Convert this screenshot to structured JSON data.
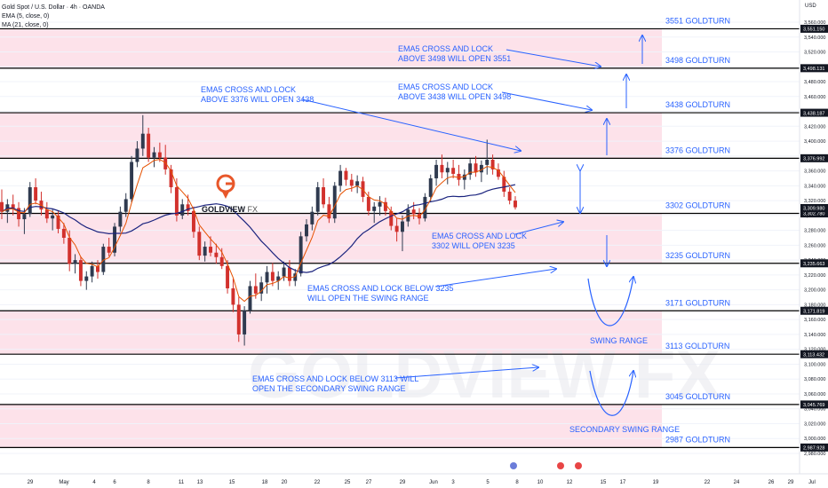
{
  "header": {
    "title": "Gold Spot / U.S. Dollar · 4h · OANDA",
    "ema_label": "EMA (5, close, 0)",
    "ma_label": "MA (21, close, 0)"
  },
  "currency_label": "USD",
  "watermark_center": "GOLDVIEW FX",
  "colors": {
    "zone_fill": "#fde2ea",
    "level_line": "#000000",
    "annotation": "#2962ff",
    "up_candle": "#2f3a4f",
    "down_candle": "#d2312d",
    "ema": "#e65100",
    "ma": "#1a237e",
    "logo": "#e8572a",
    "price_tag": "#131722"
  },
  "chart_data": {
    "type": "candlestick",
    "title": "Gold Spot / U.S. Dollar · 4h · OANDA",
    "indicators": [
      "EMA (5, close, 0)",
      "MA (21, close, 0)"
    ],
    "y_axis": {
      "unit": "USD",
      "range": [
        2975,
        3575
      ],
      "ticks": [
        3560,
        3540,
        3520,
        3500,
        3480,
        3460,
        3440,
        3420,
        3400,
        3380,
        3360,
        3340,
        3320,
        3300,
        3280,
        3260,
        3240,
        3220,
        3200,
        3180,
        3160,
        3140,
        3120,
        3100,
        3080,
        3060,
        3040,
        3020,
        3000,
        2980
      ]
    },
    "x_axis_ticks": [
      "29",
      "May",
      "4",
      "6",
      "8",
      "11",
      "13",
      "15",
      "18",
      "20",
      "22",
      "25",
      "27",
      "29",
      "Jun",
      "3",
      "5",
      "8",
      "10",
      "12",
      "15",
      "17",
      "19",
      "22",
      "24",
      "26",
      "29",
      "Jul"
    ],
    "levels": [
      {
        "price": 3551.15,
        "label": "3551 GOLDTURN",
        "tag": "3,551.150"
      },
      {
        "price": 3498.131,
        "label": "3498 GOLDTURN",
        "tag": "3,498.131"
      },
      {
        "price": 3438.187,
        "label": "3438 GOLDTURN",
        "tag": "3,438.187"
      },
      {
        "price": 3376.992,
        "label": "3376 GOLDTURN",
        "tag": "3,376.992"
      },
      {
        "price": 3302.78,
        "label": "3302 GOLDTURN",
        "tag": "3,302.780"
      },
      {
        "price": 3235.663,
        "label": "3235 GOLDTURN",
        "tag": "3,235.663"
      },
      {
        "price": 3171.819,
        "label": "3171 GOLDTURN",
        "tag": "3,171.819"
      },
      {
        "price": 3113.432,
        "label": "3113 GOLDTURN",
        "tag": "3,113.432"
      },
      {
        "price": 3045.769,
        "label": "3045 GOLDTURN",
        "tag": "3,045.769"
      },
      {
        "price": 2987.928,
        "label": "2987 GOLDTURN",
        "tag": "2,987.928"
      }
    ],
    "current_price": {
      "price": 3309.98,
      "tag": "3,309.980"
    },
    "zones": [
      [
        3498.131,
        3551.15
      ],
      [
        3376.992,
        3438.187
      ],
      [
        3235.663,
        3302.78
      ],
      [
        3113.432,
        3171.819
      ],
      [
        2987.928,
        3045.769
      ]
    ],
    "candles_ohlc": [
      [
        3318,
        3335,
        3295,
        3305
      ],
      [
        3305,
        3322,
        3290,
        3315
      ],
      [
        3315,
        3328,
        3300,
        3310
      ],
      [
        3310,
        3318,
        3285,
        3295
      ],
      [
        3295,
        3310,
        3275,
        3302
      ],
      [
        3302,
        3345,
        3298,
        3338
      ],
      [
        3338,
        3350,
        3315,
        3320
      ],
      [
        3320,
        3332,
        3300,
        3308
      ],
      [
        3308,
        3318,
        3290,
        3296
      ],
      [
        3296,
        3308,
        3280,
        3300
      ],
      [
        3300,
        3306,
        3276,
        3282
      ],
      [
        3282,
        3290,
        3262,
        3270
      ],
      [
        3270,
        3280,
        3225,
        3235
      ],
      [
        3235,
        3248,
        3222,
        3240
      ],
      [
        3240,
        3245,
        3205,
        3212
      ],
      [
        3212,
        3225,
        3200,
        3218
      ],
      [
        3218,
        3238,
        3210,
        3232
      ],
      [
        3232,
        3240,
        3215,
        3224
      ],
      [
        3224,
        3262,
        3220,
        3258
      ],
      [
        3258,
        3270,
        3245,
        3250
      ],
      [
        3250,
        3290,
        3245,
        3285
      ],
      [
        3285,
        3312,
        3278,
        3305
      ],
      [
        3305,
        3330,
        3298,
        3322
      ],
      [
        3322,
        3380,
        3318,
        3372
      ],
      [
        3372,
        3400,
        3365,
        3390
      ],
      [
        3390,
        3435,
        3380,
        3410
      ],
      [
        3410,
        3418,
        3372,
        3378
      ],
      [
        3378,
        3392,
        3365,
        3385
      ],
      [
        3385,
        3398,
        3372,
        3378
      ],
      [
        3378,
        3395,
        3355,
        3362
      ],
      [
        3362,
        3368,
        3330,
        3338
      ],
      [
        3338,
        3350,
        3292,
        3300
      ],
      [
        3300,
        3322,
        3295,
        3315
      ],
      [
        3315,
        3328,
        3300,
        3306
      ],
      [
        3306,
        3312,
        3270,
        3278
      ],
      [
        3278,
        3285,
        3240,
        3246
      ],
      [
        3246,
        3265,
        3238,
        3258
      ],
      [
        3258,
        3272,
        3245,
        3250
      ],
      [
        3250,
        3262,
        3235,
        3244
      ],
      [
        3244,
        3256,
        3228,
        3232
      ],
      [
        3232,
        3240,
        3195,
        3202
      ],
      [
        3202,
        3215,
        3170,
        3180
      ],
      [
        3180,
        3190,
        3130,
        3140
      ],
      [
        3140,
        3178,
        3125,
        3172
      ],
      [
        3172,
        3212,
        3168,
        3205
      ],
      [
        3205,
        3222,
        3188,
        3195
      ],
      [
        3195,
        3218,
        3185,
        3210
      ],
      [
        3210,
        3232,
        3195,
        3224
      ],
      [
        3224,
        3236,
        3205,
        3212
      ],
      [
        3212,
        3225,
        3200,
        3218
      ],
      [
        3218,
        3238,
        3212,
        3230
      ],
      [
        3230,
        3240,
        3205,
        3212
      ],
      [
        3212,
        3228,
        3205,
        3222
      ],
      [
        3222,
        3278,
        3218,
        3272
      ],
      [
        3272,
        3295,
        3265,
        3288
      ],
      [
        3288,
        3312,
        3280,
        3305
      ],
      [
        3305,
        3345,
        3300,
        3338
      ],
      [
        3338,
        3350,
        3310,
        3315
      ],
      [
        3315,
        3325,
        3290,
        3296
      ],
      [
        3296,
        3345,
        3290,
        3340
      ],
      [
        3340,
        3368,
        3332,
        3360
      ],
      [
        3360,
        3364,
        3340,
        3348
      ],
      [
        3348,
        3356,
        3332,
        3340
      ],
      [
        3340,
        3354,
        3330,
        3346
      ],
      [
        3346,
        3352,
        3318,
        3325
      ],
      [
        3325,
        3332,
        3300,
        3306
      ],
      [
        3306,
        3318,
        3290,
        3312
      ],
      [
        3312,
        3326,
        3300,
        3318
      ],
      [
        3318,
        3324,
        3300,
        3306
      ],
      [
        3306,
        3312,
        3280,
        3286
      ],
      [
        3286,
        3296,
        3265,
        3278
      ],
      [
        3278,
        3300,
        3252,
        3292
      ],
      [
        3292,
        3315,
        3285,
        3308
      ],
      [
        3308,
        3318,
        3295,
        3302
      ],
      [
        3302,
        3310,
        3288,
        3296
      ],
      [
        3296,
        3330,
        3292,
        3325
      ],
      [
        3325,
        3355,
        3318,
        3350
      ],
      [
        3350,
        3375,
        3340,
        3368
      ],
      [
        3368,
        3382,
        3350,
        3358
      ],
      [
        3358,
        3372,
        3342,
        3364
      ],
      [
        3364,
        3375,
        3350,
        3356
      ],
      [
        3356,
        3368,
        3340,
        3348
      ],
      [
        3348,
        3362,
        3335,
        3355
      ],
      [
        3355,
        3376,
        3348,
        3370
      ],
      [
        3370,
        3380,
        3352,
        3358
      ],
      [
        3358,
        3374,
        3345,
        3368
      ],
      [
        3368,
        3402,
        3355,
        3375
      ],
      [
        3375,
        3382,
        3355,
        3362
      ],
      [
        3362,
        3370,
        3348,
        3352
      ],
      [
        3352,
        3360,
        3325,
        3332
      ],
      [
        3332,
        3338,
        3315,
        3320
      ],
      [
        3320,
        3326,
        3308,
        3311
      ]
    ],
    "annotations": [
      {
        "text": [
          "EMA5 CROSS AND LOCK",
          "ABOVE 3498 WILL OPEN 3551"
        ]
      },
      {
        "text": [
          "EMA5 CROSS AND LOCK",
          "ABOVE 3438 WILL OPEN 3498"
        ]
      },
      {
        "text": [
          "EMA5 CROSS AND LOCK",
          "ABOVE 3376 WILL OPEN 3438"
        ]
      },
      {
        "text": [
          "EMA5 CROSS AND LOCK",
          "3302 WILL OPEN 3235"
        ]
      },
      {
        "text": [
          "EMA5 CROSS AND LOCK BELOW 3235",
          "WILL OPEN THE SWING RANGE"
        ]
      },
      {
        "text": [
          "EMA5 CROSS AND LOCK BELOW 3113 WILL",
          "OPEN THE SECONDARY SWING RANGE"
        ]
      },
      {
        "text": [
          "SWING RANGE"
        ]
      },
      {
        "text": [
          "SECONDARY SWING RANGE"
        ]
      }
    ]
  }
}
